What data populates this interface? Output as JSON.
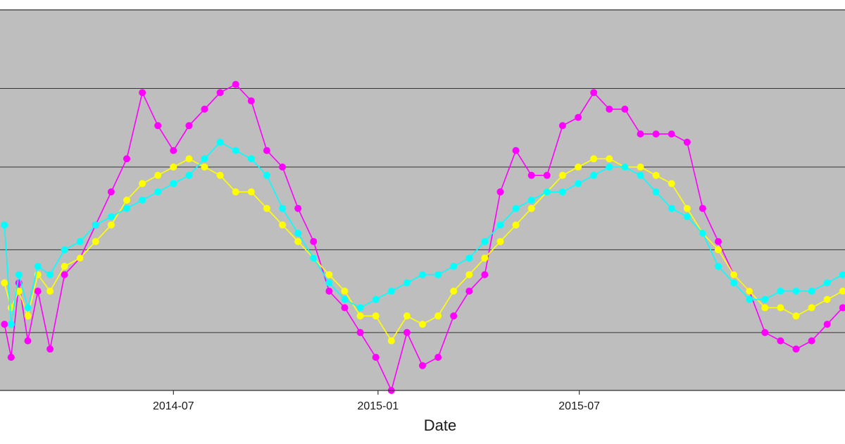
{
  "chart_data": {
    "type": "line",
    "title": "",
    "xlabel": "Date",
    "ylabel": "",
    "x_range": [
      "2014-01-26",
      "2016-02-25"
    ],
    "x_ticks": [
      "2014-07-01",
      "2015-01-01",
      "2015-07-01"
    ],
    "x_tick_labels": [
      "2014-07",
      "2015-01",
      "2015-07"
    ],
    "grid": "horizontal",
    "background": "#bebebe",
    "legend": "none",
    "series": [
      {
        "color": "#ff00ff",
        "marker": "circle",
        "x": [
          "2014-01-30",
          "2014-02-05",
          "2014-02-12",
          "2014-02-20",
          "2014-03-01",
          "2014-03-12",
          "2014-03-25",
          "2014-04-08",
          "2014-04-22",
          "2014-05-06",
          "2014-05-20",
          "2014-06-03",
          "2014-06-17",
          "2014-07-01",
          "2014-07-15",
          "2014-07-29",
          "2014-08-12",
          "2014-08-26",
          "2014-09-09",
          "2014-09-23",
          "2014-10-07",
          "2014-10-21",
          "2014-11-04",
          "2014-11-18",
          "2014-12-02",
          "2014-12-16",
          "2014-12-30",
          "2015-01-13",
          "2015-01-27",
          "2015-02-10",
          "2015-02-24",
          "2015-03-10",
          "2015-03-24",
          "2015-04-07",
          "2015-04-21",
          "2015-05-05",
          "2015-05-19",
          "2015-06-02",
          "2015-06-16",
          "2015-06-30",
          "2015-07-14",
          "2015-07-28",
          "2015-08-11",
          "2015-08-25",
          "2015-09-08",
          "2015-09-22",
          "2015-10-06",
          "2015-10-20",
          "2015-11-03",
          "2015-11-17",
          "2015-12-01",
          "2015-12-15",
          "2015-12-29",
          "2016-01-12",
          "2016-01-26",
          "2016-02-09",
          "2016-02-23"
        ],
        "y": [
          -4,
          -8,
          1,
          -6,
          0,
          -7,
          2,
          4,
          8,
          12,
          16,
          24,
          20,
          17,
          20,
          22,
          24,
          25,
          23,
          17,
          15,
          10,
          6,
          0,
          -2,
          -5,
          -8,
          -12,
          -5,
          -9,
          -8,
          -3,
          0,
          2,
          12,
          17,
          14,
          14,
          20,
          21,
          24,
          22,
          22,
          19,
          19,
          19,
          18,
          10,
          6,
          2,
          0,
          -5,
          -6,
          -7,
          -6,
          -4,
          -2
        ]
      },
      {
        "color": "#ffff00",
        "marker": "circle",
        "x": [
          "2014-01-30",
          "2014-02-05",
          "2014-02-12",
          "2014-02-20",
          "2014-03-01",
          "2014-03-12",
          "2014-03-25",
          "2014-04-08",
          "2014-04-22",
          "2014-05-06",
          "2014-05-20",
          "2014-06-03",
          "2014-06-17",
          "2014-07-01",
          "2014-07-15",
          "2014-07-29",
          "2014-08-12",
          "2014-08-26",
          "2014-09-09",
          "2014-09-23",
          "2014-10-07",
          "2014-10-21",
          "2014-11-04",
          "2014-11-18",
          "2014-12-02",
          "2014-12-16",
          "2014-12-30",
          "2015-01-13",
          "2015-01-27",
          "2015-02-10",
          "2015-02-24",
          "2015-03-10",
          "2015-03-24",
          "2015-04-07",
          "2015-04-21",
          "2015-05-05",
          "2015-05-19",
          "2015-06-02",
          "2015-06-16",
          "2015-06-30",
          "2015-07-14",
          "2015-07-28",
          "2015-08-11",
          "2015-08-25",
          "2015-09-08",
          "2015-09-22",
          "2015-10-06",
          "2015-10-20",
          "2015-11-03",
          "2015-11-17",
          "2015-12-01",
          "2015-12-15",
          "2015-12-29",
          "2016-01-12",
          "2016-01-26",
          "2016-02-09",
          "2016-02-23"
        ],
        "y": [
          1,
          -2,
          0,
          -3,
          2,
          0,
          3,
          4,
          6,
          8,
          11,
          13,
          14,
          15,
          16,
          15,
          14,
          12,
          12,
          10,
          8,
          6,
          4,
          2,
          0,
          -3,
          -3,
          -6,
          -3,
          -4,
          -3,
          0,
          2,
          4,
          6,
          8,
          10,
          12,
          14,
          15,
          16,
          16,
          15,
          15,
          14,
          13,
          10,
          7,
          5,
          2,
          0,
          -2,
          -2,
          -3,
          -2,
          -1,
          0
        ]
      },
      {
        "color": "#00ffff",
        "marker": "circle",
        "x": [
          "2014-01-30",
          "2014-02-05",
          "2014-02-12",
          "2014-02-20",
          "2014-03-01",
          "2014-03-12",
          "2014-03-25",
          "2014-04-08",
          "2014-04-22",
          "2014-05-06",
          "2014-05-20",
          "2014-06-03",
          "2014-06-17",
          "2014-07-01",
          "2014-07-15",
          "2014-07-29",
          "2014-08-12",
          "2014-08-26",
          "2014-09-09",
          "2014-09-23",
          "2014-10-07",
          "2014-10-21",
          "2014-11-04",
          "2014-11-18",
          "2014-12-02",
          "2014-12-16",
          "2014-12-30",
          "2015-01-13",
          "2015-01-27",
          "2015-02-10",
          "2015-02-24",
          "2015-03-10",
          "2015-03-24",
          "2015-04-07",
          "2015-04-21",
          "2015-05-05",
          "2015-05-19",
          "2015-06-02",
          "2015-06-16",
          "2015-06-30",
          "2015-07-14",
          "2015-07-28",
          "2015-08-11",
          "2015-08-25",
          "2015-09-08",
          "2015-09-22",
          "2015-10-06",
          "2015-10-20",
          "2015-11-03",
          "2015-11-17",
          "2015-12-01",
          "2015-12-15",
          "2015-12-29",
          "2016-01-12",
          "2016-01-26",
          "2016-02-09",
          "2016-02-23"
        ],
        "y": [
          8,
          -4,
          2,
          -2,
          3,
          2,
          5,
          6,
          8,
          9,
          10,
          11,
          12,
          13,
          14,
          16,
          18,
          17,
          16,
          14,
          10,
          7,
          4,
          1,
          -1,
          -2,
          -1,
          0,
          1,
          2,
          2,
          3,
          4,
          6,
          8,
          10,
          11,
          12,
          12,
          13,
          14,
          15,
          15,
          14,
          12,
          10,
          9,
          7,
          3,
          1,
          -1,
          -1,
          0,
          0,
          0,
          1,
          2
        ]
      }
    ]
  }
}
